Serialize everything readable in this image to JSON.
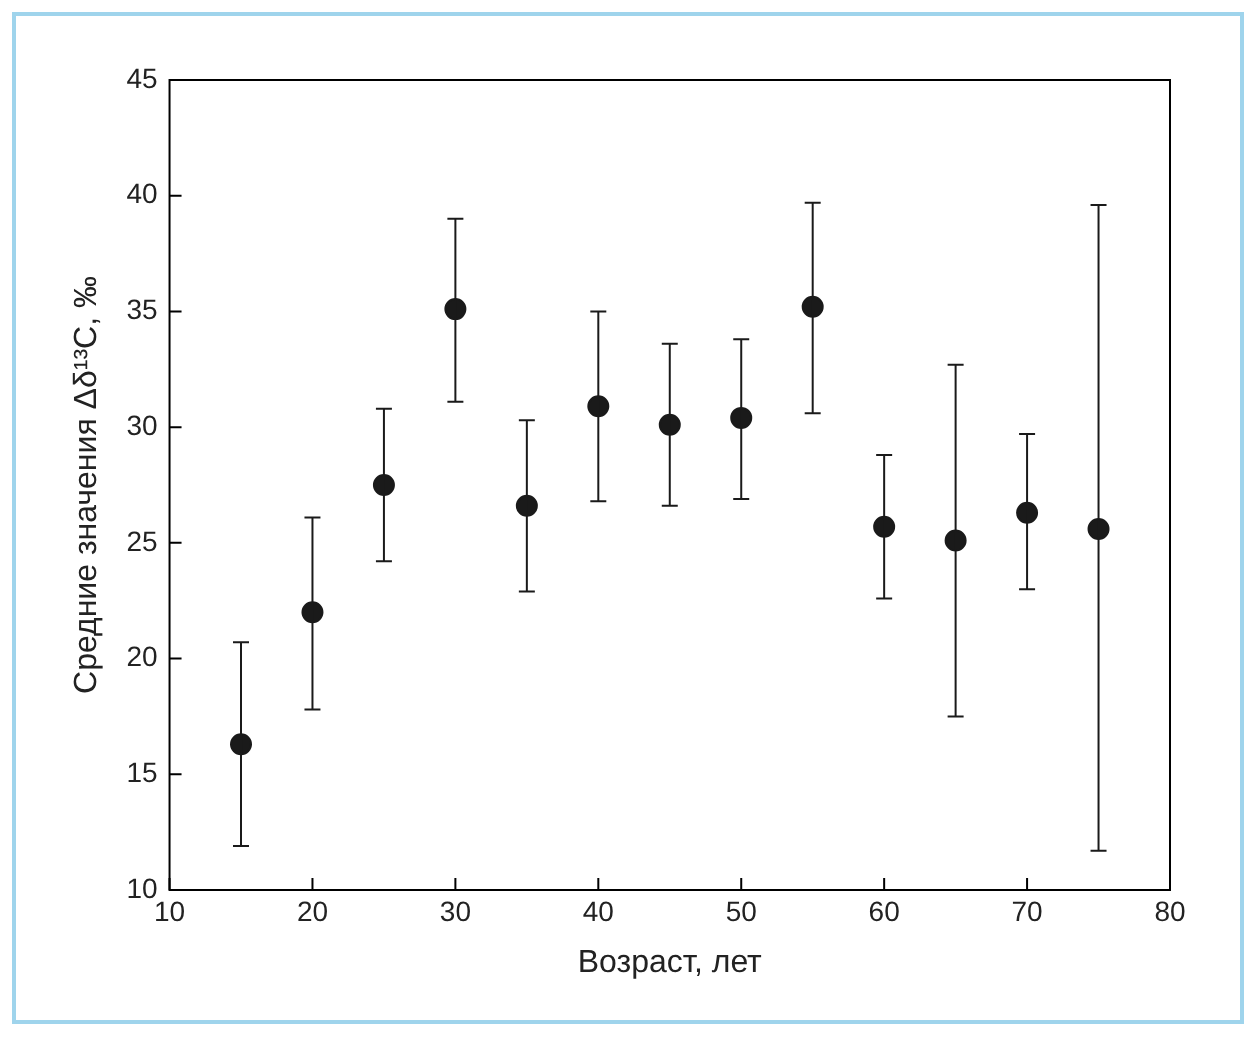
{
  "chart_data": {
    "type": "scatter",
    "xlabel": "Возраст, лет",
    "ylabel": "Средние значения Δδ¹³C, ‰",
    "x": [
      15,
      20,
      25,
      30,
      35,
      40,
      45,
      50,
      55,
      60,
      65,
      70,
      75
    ],
    "series": [
      {
        "color": "#1a1a1a",
        "values": [
          16.3,
          22.0,
          27.5,
          35.1,
          26.6,
          30.9,
          30.1,
          30.4,
          35.2,
          25.7,
          25.1,
          26.3,
          25.6
        ],
        "errors": [
          [
            11.9,
            20.7
          ],
          [
            17.8,
            26.1
          ],
          [
            24.2,
            30.8
          ],
          [
            31.1,
            39.0
          ],
          [
            22.9,
            30.3
          ],
          [
            26.8,
            35.0
          ],
          [
            26.6,
            33.6
          ],
          [
            26.9,
            33.8
          ],
          [
            30.6,
            39.7
          ],
          [
            22.6,
            28.8
          ],
          [
            17.5,
            32.7
          ],
          [
            23.0,
            29.7
          ],
          [
            11.7,
            39.6
          ]
        ]
      }
    ],
    "marker": "circle",
    "xlim": [
      10,
      80
    ],
    "xticks": [
      10,
      20,
      30,
      40,
      50,
      60,
      70,
      80
    ],
    "ylim": [
      10,
      45
    ],
    "yticks": [
      10,
      15,
      20,
      25,
      30,
      35,
      40,
      45
    ],
    "grid": false,
    "legend": false
  }
}
